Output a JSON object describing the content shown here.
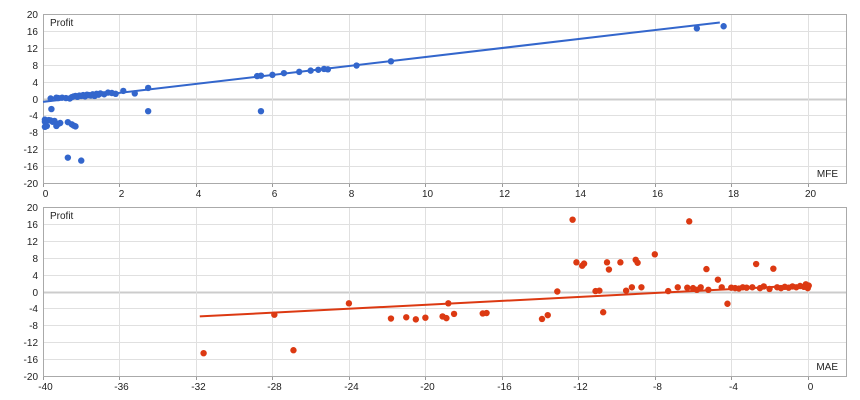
{
  "chart_data": [
    {
      "type": "scatter",
      "title": "",
      "xlabel": "MFE",
      "ylabel": "Profit",
      "xlim": [
        0,
        21
      ],
      "ylim": [
        -20,
        20
      ],
      "xticks": [
        0,
        2,
        4,
        6,
        8,
        10,
        12,
        14,
        16,
        18,
        20
      ],
      "yticks": [
        20,
        16,
        12,
        8,
        4,
        0,
        -4,
        -8,
        -12,
        -16,
        -20
      ],
      "grid": true,
      "color": "#3366cc",
      "trendline": {
        "x": [
          0,
          17.7
        ],
        "y": [
          -0.8,
          18.0
        ]
      },
      "points": [
        [
          0.05,
          -5.0
        ],
        [
          0.05,
          -5.5
        ],
        [
          0.05,
          -6.7
        ],
        [
          0.1,
          -6.5
        ],
        [
          0.15,
          -5.1
        ],
        [
          0.2,
          -5.2
        ],
        [
          0.22,
          -2.5
        ],
        [
          0.25,
          -5.5
        ],
        [
          0.3,
          -5.3
        ],
        [
          0.35,
          -6.5
        ],
        [
          0.4,
          -6.0
        ],
        [
          0.45,
          -5.8
        ],
        [
          0.65,
          -5.6
        ],
        [
          0.75,
          -6.1
        ],
        [
          0.8,
          -6.4
        ],
        [
          0.85,
          -6.6
        ],
        [
          0.65,
          -14.0
        ],
        [
          1.0,
          -14.7
        ],
        [
          2.75,
          -3.0
        ],
        [
          5.7,
          -3.0
        ],
        [
          0.2,
          0.0
        ],
        [
          0.35,
          0.2
        ],
        [
          0.4,
          0.1
        ],
        [
          0.5,
          0.2
        ],
        [
          0.6,
          0.1
        ],
        [
          0.7,
          0.0
        ],
        [
          0.75,
          0.3
        ],
        [
          0.8,
          0.5
        ],
        [
          0.85,
          0.6
        ],
        [
          0.9,
          0.4
        ],
        [
          0.95,
          0.7
        ],
        [
          1.0,
          0.6
        ],
        [
          1.05,
          0.8
        ],
        [
          1.1,
          0.5
        ],
        [
          1.15,
          0.9
        ],
        [
          1.2,
          0.8
        ],
        [
          1.25,
          0.7
        ],
        [
          1.3,
          1.0
        ],
        [
          1.35,
          0.6
        ],
        [
          1.4,
          1.1
        ],
        [
          1.45,
          0.9
        ],
        [
          1.5,
          1.2
        ],
        [
          1.6,
          1.0
        ],
        [
          1.7,
          1.4
        ],
        [
          1.8,
          1.3
        ],
        [
          1.9,
          1.1
        ],
        [
          2.1,
          1.8
        ],
        [
          2.4,
          1.2
        ],
        [
          2.75,
          2.5
        ],
        [
          5.6,
          5.3
        ],
        [
          5.7,
          5.4
        ],
        [
          6.0,
          5.6
        ],
        [
          6.3,
          6.0
        ],
        [
          6.7,
          6.3
        ],
        [
          7.0,
          6.6
        ],
        [
          7.2,
          6.8
        ],
        [
          7.35,
          7.0
        ],
        [
          7.45,
          6.9
        ],
        [
          8.2,
          7.8
        ],
        [
          9.1,
          8.8
        ],
        [
          17.1,
          16.6
        ],
        [
          17.8,
          17.1
        ]
      ],
      "position": {
        "x0px": 43,
        "x1px": 846,
        "y0px": 14,
        "y1px": 183
      }
    },
    {
      "type": "scatter",
      "title": "",
      "xlabel": "MAE",
      "ylabel": "Profit",
      "xlim": [
        -40,
        2
      ],
      "ylim": [
        -20,
        20
      ],
      "xticks": [
        -40,
        -36,
        -32,
        -28,
        -24,
        -20,
        -16,
        -12,
        -8,
        -4,
        0
      ],
      "yticks": [
        20,
        16,
        12,
        8,
        4,
        0,
        -4,
        -8,
        -12,
        -16,
        -20
      ],
      "grid": true,
      "color": "#dc3912",
      "trendline": {
        "x": [
          -31.8,
          0
        ],
        "y": [
          -5.9,
          1.5
        ]
      },
      "points": [
        [
          -31.6,
          -14.6
        ],
        [
          -27.9,
          -5.5
        ],
        [
          -26.9,
          -13.9
        ],
        [
          -24.0,
          -2.8
        ],
        [
          -21.8,
          -6.4
        ],
        [
          -21.0,
          -6.1
        ],
        [
          -20.5,
          -6.6
        ],
        [
          -20.0,
          -6.2
        ],
        [
          -19.1,
          -5.9
        ],
        [
          -18.9,
          -6.3
        ],
        [
          -18.8,
          -2.8
        ],
        [
          -18.5,
          -5.3
        ],
        [
          -17.0,
          -5.2
        ],
        [
          -16.8,
          -5.1
        ],
        [
          -13.9,
          -6.5
        ],
        [
          -13.6,
          -5.6
        ],
        [
          -13.1,
          0.0
        ],
        [
          -12.3,
          17.0
        ],
        [
          -12.1,
          6.9
        ],
        [
          -11.8,
          6.1
        ],
        [
          -11.7,
          6.6
        ],
        [
          -11.1,
          0.1
        ],
        [
          -10.9,
          0.2
        ],
        [
          -10.7,
          -4.9
        ],
        [
          -10.5,
          6.9
        ],
        [
          -10.4,
          5.2
        ],
        [
          -9.8,
          6.9
        ],
        [
          -9.5,
          0.2
        ],
        [
          -9.2,
          1.0
        ],
        [
          -9.0,
          7.5
        ],
        [
          -8.9,
          6.8
        ],
        [
          -8.7,
          1.0
        ],
        [
          -8.0,
          8.8
        ],
        [
          -7.3,
          0.1
        ],
        [
          -6.8,
          1.0
        ],
        [
          -6.2,
          16.6
        ],
        [
          -6.3,
          0.9
        ],
        [
          -6.0,
          0.8
        ],
        [
          -5.8,
          0.4
        ],
        [
          -5.6,
          1.0
        ],
        [
          -5.3,
          5.3
        ],
        [
          -5.2,
          0.4
        ],
        [
          -4.7,
          2.8
        ],
        [
          -4.5,
          1.0
        ],
        [
          -4.2,
          -2.9
        ],
        [
          -4.0,
          0.9
        ],
        [
          -3.8,
          0.8
        ],
        [
          -3.6,
          0.7
        ],
        [
          -3.4,
          1.0
        ],
        [
          -3.2,
          0.9
        ],
        [
          -2.9,
          1.0
        ],
        [
          -2.7,
          6.5
        ],
        [
          -2.5,
          0.8
        ],
        [
          -2.3,
          1.2
        ],
        [
          -2.0,
          0.6
        ],
        [
          -1.8,
          5.4
        ],
        [
          -1.6,
          1.0
        ],
        [
          -1.4,
          0.8
        ],
        [
          -1.2,
          1.1
        ],
        [
          -1.0,
          0.9
        ],
        [
          -0.8,
          1.2
        ],
        [
          -0.6,
          1.0
        ],
        [
          -0.4,
          1.3
        ],
        [
          -0.2,
          1.1
        ],
        [
          -0.1,
          1.7
        ],
        [
          0.0,
          0.8
        ],
        [
          0.05,
          1.4
        ]
      ],
      "position": {
        "x0px": 43,
        "x1px": 846,
        "y0px": 207,
        "y1px": 376
      }
    }
  ]
}
